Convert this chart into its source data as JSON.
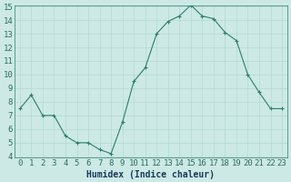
{
  "x": [
    0,
    1,
    2,
    3,
    4,
    5,
    6,
    7,
    8,
    9,
    10,
    11,
    12,
    13,
    14,
    15,
    16,
    17,
    18,
    19,
    20,
    21,
    22,
    23
  ],
  "y": [
    7.5,
    8.5,
    7.0,
    7.0,
    5.5,
    5.0,
    5.0,
    4.5,
    4.2,
    6.5,
    9.5,
    10.5,
    13.0,
    13.9,
    14.3,
    15.1,
    14.3,
    14.1,
    13.1,
    12.5,
    10.0,
    8.7,
    7.5,
    7.5
  ],
  "line_color": "#2e7d6e",
  "marker": "+",
  "marker_size": 3,
  "marker_linewidth": 0.8,
  "line_width": 0.8,
  "xlabel": "Humidex (Indice chaleur)",
  "ylim": [
    4,
    15
  ],
  "xlim": [
    -0.5,
    23.5
  ],
  "yticks": [
    4,
    5,
    6,
    7,
    8,
    9,
    10,
    11,
    12,
    13,
    14,
    15
  ],
  "xticks": [
    0,
    1,
    2,
    3,
    4,
    5,
    6,
    7,
    8,
    9,
    10,
    11,
    12,
    13,
    14,
    15,
    16,
    17,
    18,
    19,
    20,
    21,
    22,
    23
  ],
  "bg_color": "#cce9e5",
  "grid_color": "#b5d9d4",
  "line_border_color": "#2e7d6e",
  "tick_color": "#2e6e5e",
  "xlabel_color": "#1a3a5c",
  "label_fontsize": 7,
  "tick_fontsize": 6.5
}
